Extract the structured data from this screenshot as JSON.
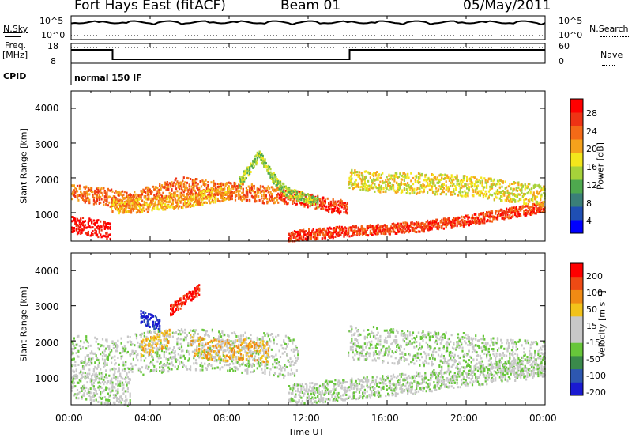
{
  "header": {
    "station": "Fort Hays East (fitACF)",
    "beam": "Beam 01",
    "date": "05/May/2011"
  },
  "summary_panels": {
    "nsky_label": "N.Sky",
    "nsearch_label": "N.Search",
    "noise_ticks": [
      "10^5",
      "10^0"
    ],
    "freq_label_1": "Freq.",
    "freq_label_2": "[MHz]",
    "freq_ticks": [
      "18",
      "8"
    ],
    "nave_label": "Nave",
    "nave_ticks": [
      "60",
      "0"
    ],
    "cpid_label": "CPID",
    "cpid_value": "normal 150 IF"
  },
  "colors": {
    "power_scale": [
      "#0000ff",
      "#1f4fb4",
      "#3a7f78",
      "#4ea94e",
      "#a6d23a",
      "#f3e61c",
      "#f5a21c",
      "#f46a17",
      "#ee3314",
      "#ff0000"
    ],
    "velocity_scale": [
      "#1a1ad1",
      "#2d57b0",
      "#3a8a4b",
      "#67c63a",
      "#c8c8c8",
      "#c8c8c8",
      "#f2c21a",
      "#f08a14",
      "#ee4a14",
      "#ff0000"
    ]
  },
  "chart_data": [
    {
      "type": "heatmap",
      "panel": "power",
      "ylabel": "Slant Range [km]",
      "yticks": [
        "1000",
        "2000",
        "3000",
        "4000"
      ],
      "ylim": [
        180,
        4500
      ],
      "xlim": [
        0,
        24
      ],
      "colorbar_label": "Power [dB]",
      "colorbar_ticks": [
        "28",
        "24",
        "20",
        "16",
        "12",
        "8",
        "4"
      ],
      "bands": [
        {
          "x": [
            0.0,
            0.5,
            1.0,
            1.5,
            2.0
          ],
          "y": [
            700,
            650,
            600,
            550,
            500
          ],
          "w": 250,
          "level": 9
        },
        {
          "x": [
            0.0,
            1.5,
            3.0,
            4.0,
            5.5,
            7.0,
            9.0,
            10.5
          ],
          "y": [
            1600,
            1500,
            1350,
            1550,
            1800,
            1700,
            1600,
            1500
          ],
          "w": 250,
          "level": 7
        },
        {
          "x": [
            10.5,
            11.5,
            12.5,
            13.5,
            14.0
          ],
          "y": [
            1500,
            1450,
            1300,
            1200,
            1200
          ],
          "w": 200,
          "level": 8
        },
        {
          "x": [
            2.0,
            4.0,
            6.0,
            8.0
          ],
          "y": [
            1200,
            1250,
            1400,
            1600
          ],
          "w": 200,
          "level": 6
        },
        {
          "x": [
            11.0,
            12.5,
            14.0,
            16.0,
            18.0,
            20.0,
            22.0,
            24.0
          ],
          "y": [
            350,
            420,
            500,
            550,
            650,
            800,
            1000,
            1200
          ],
          "w": 150,
          "level": 8
        },
        {
          "x": [
            14.0,
            16.0,
            18.0,
            20.0,
            22.0,
            24.0
          ],
          "y": [
            2000,
            1900,
            1850,
            1800,
            1650,
            1500
          ],
          "w": 300,
          "level": 5
        },
        {
          "x": [
            8.5,
            9.0,
            9.5,
            10.0,
            10.5,
            11.0,
            11.5,
            12.0,
            12.5
          ],
          "y": [
            1900,
            2300,
            2700,
            2200,
            1800,
            1600,
            1500,
            1450,
            1300
          ],
          "w": 150,
          "level": 4
        }
      ]
    },
    {
      "type": "heatmap",
      "panel": "velocity",
      "ylabel": "Slant Range [km]",
      "xlabel": "Time UT",
      "yticks": [
        "1000",
        "2000",
        "3000",
        "4000"
      ],
      "xticks": [
        "00:00",
        "04:00",
        "08:00",
        "12:00",
        "16:00",
        "20:00",
        "00:00"
      ],
      "ylim": [
        180,
        4500
      ],
      "xlim": [
        0,
        24
      ],
      "colorbar_label": "Velocity [m s⁻¹]",
      "colorbar_ticks": [
        "200",
        "100",
        "50",
        "15",
        "-15",
        "-50",
        "-100",
        "-200"
      ],
      "bands": [
        {
          "x": [
            0.0,
            2.0,
            4.0,
            6.0,
            8.0,
            10.0,
            11.5
          ],
          "y": [
            1600,
            1500,
            1700,
            1800,
            1750,
            1650,
            1500
          ],
          "w": 600,
          "level": 4
        },
        {
          "x": [
            0.0,
            1.0,
            2.0,
            3.0
          ],
          "y": [
            800,
            700,
            600,
            550
          ],
          "w": 400,
          "level": 4
        },
        {
          "x": [
            6.0,
            7.0,
            8.0,
            9.0,
            10.0
          ],
          "y": [
            1900,
            1800,
            1750,
            1800,
            1700
          ],
          "w": 300,
          "level": 6
        },
        {
          "x": [
            3.5,
            4.0,
            4.5,
            5.0
          ],
          "y": [
            1800,
            1900,
            2000,
            2200
          ],
          "w": 250,
          "level": 6
        },
        {
          "x": [
            14.0,
            16.0,
            18.0,
            20.0,
            22.0,
            24.0
          ],
          "y": [
            2000,
            1900,
            1800,
            1750,
            1600,
            1500
          ],
          "w": 500,
          "level": 4
        },
        {
          "x": [
            11.0,
            13.0,
            15.0,
            17.0,
            19.0,
            21.0,
            24.0
          ],
          "y": [
            500,
            600,
            700,
            800,
            950,
            1100,
            1300
          ],
          "w": 300,
          "level": 4
        },
        {
          "x": [
            5.0,
            5.5,
            6.0,
            6.5
          ],
          "y": [
            2900,
            3100,
            3300,
            3500
          ],
          "w": 150,
          "level": 9
        },
        {
          "x": [
            3.5,
            4.0,
            4.5
          ],
          "y": [
            2700,
            2600,
            2500
          ],
          "w": 200,
          "level": 0
        }
      ]
    }
  ]
}
